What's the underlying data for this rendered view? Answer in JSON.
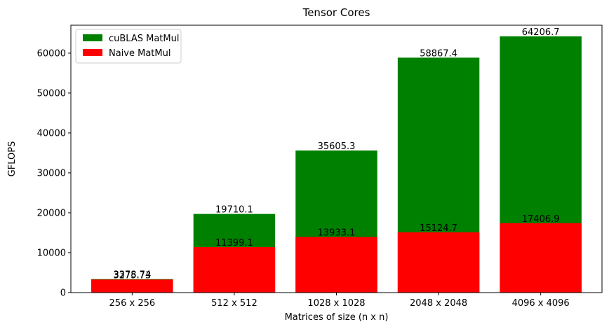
{
  "chart_data": {
    "type": "bar",
    "title": "Tensor Cores",
    "xlabel": "Matrices of size (n x n)",
    "ylabel": "GFLOPS",
    "categories": [
      "256 x 256",
      "512 x 512",
      "1028 x 1028",
      "2048 x 2048",
      "4096 x 4096"
    ],
    "ylim": [
      0,
      67000
    ],
    "yticks": [
      0,
      10000,
      20000,
      30000,
      40000,
      50000,
      60000
    ],
    "ytick_labels": [
      "0",
      "10000",
      "20000",
      "30000",
      "40000",
      "50000",
      "60000"
    ],
    "grid": false,
    "legend_position": "top-left",
    "series": [
      {
        "name": "cuBLAS MatMul",
        "color": "#008000",
        "values": [
          3378.74,
          19710.1,
          35605.3,
          58867.4,
          64206.7
        ],
        "labels": [
          "3378.74",
          "19710.1",
          "35605.3",
          "58867.4",
          "64206.7"
        ]
      },
      {
        "name": "Naive MatMul",
        "color": "#ff0000",
        "values": [
          3275.73,
          11399.1,
          13933.1,
          15124.7,
          17406.9
        ],
        "labels": [
          "3275.73",
          "11399.1",
          "13933.1",
          "15124.7",
          "17406.9"
        ]
      }
    ]
  }
}
